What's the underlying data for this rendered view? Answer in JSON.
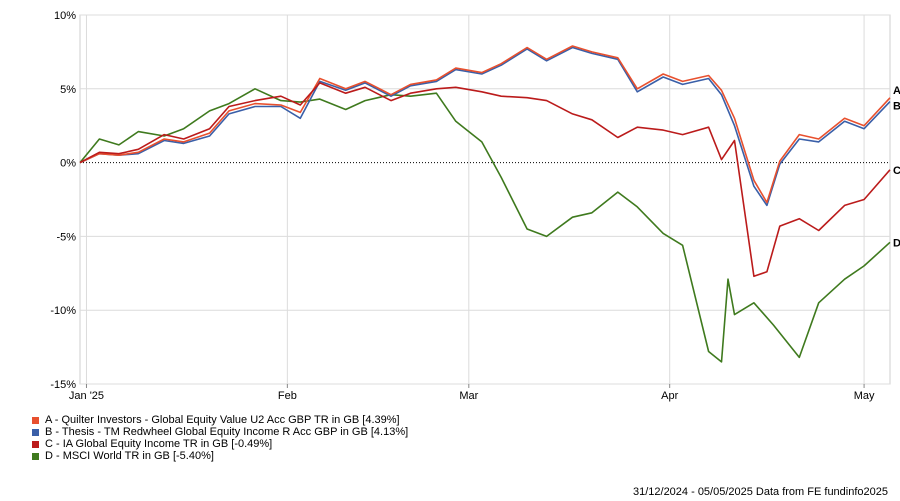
{
  "chart_data": {
    "type": "line",
    "x_axis": {
      "ticks": [
        "Jan '25",
        "Feb",
        "Mar",
        "Apr",
        "May"
      ],
      "tick_dates": [
        "2025-01-01",
        "2025-02-01",
        "2025-03-01",
        "2025-04-01",
        "2025-05-01"
      ],
      "range": [
        "2024-12-31",
        "2025-05-05"
      ]
    },
    "y_axis": {
      "ticks": [
        "10%",
        "5%",
        "0%",
        "-5%",
        "-10%",
        "-15%"
      ],
      "tick_values": [
        10,
        5,
        0,
        -5,
        -10,
        -15
      ],
      "range": [
        -15,
        10
      ],
      "unit": "%"
    },
    "grid": true,
    "zero_line": "dotted",
    "legend_position": "bottom-left",
    "footer": "31/12/2024 - 05/05/2025 Data from FE fundinfo2025",
    "series": [
      {
        "name": "A - Quilter Investors - Global Equity Value U2 Acc GBP TR in GB [4.39%]",
        "end_label": "A",
        "color": "#e8502e",
        "points": [
          [
            "2024-12-31",
            0.0
          ],
          [
            "2025-01-03",
            0.6
          ],
          [
            "2025-01-06",
            0.5
          ],
          [
            "2025-01-09",
            0.7
          ],
          [
            "2025-01-13",
            1.6
          ],
          [
            "2025-01-16",
            1.4
          ],
          [
            "2025-01-20",
            2.0
          ],
          [
            "2025-01-23",
            3.5
          ],
          [
            "2025-01-27",
            4.0
          ],
          [
            "2025-01-31",
            3.9
          ],
          [
            "2025-02-03",
            3.4
          ],
          [
            "2025-02-06",
            5.7
          ],
          [
            "2025-02-10",
            5.0
          ],
          [
            "2025-02-13",
            5.5
          ],
          [
            "2025-02-17",
            4.6
          ],
          [
            "2025-02-20",
            5.3
          ],
          [
            "2025-02-24",
            5.6
          ],
          [
            "2025-02-27",
            6.4
          ],
          [
            "2025-03-03",
            6.1
          ],
          [
            "2025-03-06",
            6.7
          ],
          [
            "2025-03-10",
            7.8
          ],
          [
            "2025-03-13",
            7.0
          ],
          [
            "2025-03-17",
            7.9
          ],
          [
            "2025-03-20",
            7.5
          ],
          [
            "2025-03-24",
            7.1
          ],
          [
            "2025-03-27",
            5.0
          ],
          [
            "2025-03-31",
            6.0
          ],
          [
            "2025-04-03",
            5.5
          ],
          [
            "2025-04-07",
            5.9
          ],
          [
            "2025-04-09",
            4.9
          ],
          [
            "2025-04-11",
            3.0
          ],
          [
            "2025-04-14",
            -1.2
          ],
          [
            "2025-04-16",
            -2.7
          ],
          [
            "2025-04-18",
            0.1
          ],
          [
            "2025-04-21",
            1.9
          ],
          [
            "2025-04-24",
            1.6
          ],
          [
            "2025-04-28",
            3.0
          ],
          [
            "2025-05-01",
            2.5
          ],
          [
            "2025-05-05",
            4.39
          ]
        ]
      },
      {
        "name": "B - Thesis - TM Redwheel Global Equity Income R Acc GBP in GB [4.13%]",
        "end_label": "B",
        "color": "#3a5fa8",
        "points": [
          [
            "2024-12-31",
            0.0
          ],
          [
            "2025-01-03",
            0.6
          ],
          [
            "2025-01-06",
            0.5
          ],
          [
            "2025-01-09",
            0.6
          ],
          [
            "2025-01-13",
            1.5
          ],
          [
            "2025-01-16",
            1.3
          ],
          [
            "2025-01-20",
            1.8
          ],
          [
            "2025-01-23",
            3.3
          ],
          [
            "2025-01-27",
            3.8
          ],
          [
            "2025-01-31",
            3.8
          ],
          [
            "2025-02-03",
            3.0
          ],
          [
            "2025-02-06",
            5.5
          ],
          [
            "2025-02-10",
            4.9
          ],
          [
            "2025-02-13",
            5.4
          ],
          [
            "2025-02-17",
            4.5
          ],
          [
            "2025-02-20",
            5.2
          ],
          [
            "2025-02-24",
            5.5
          ],
          [
            "2025-02-27",
            6.3
          ],
          [
            "2025-03-03",
            6.0
          ],
          [
            "2025-03-06",
            6.6
          ],
          [
            "2025-03-10",
            7.7
          ],
          [
            "2025-03-13",
            6.9
          ],
          [
            "2025-03-17",
            7.8
          ],
          [
            "2025-03-20",
            7.4
          ],
          [
            "2025-03-24",
            7.0
          ],
          [
            "2025-03-27",
            4.8
          ],
          [
            "2025-03-31",
            5.8
          ],
          [
            "2025-04-03",
            5.3
          ],
          [
            "2025-04-07",
            5.7
          ],
          [
            "2025-04-09",
            4.6
          ],
          [
            "2025-04-11",
            2.5
          ],
          [
            "2025-04-14",
            -1.6
          ],
          [
            "2025-04-16",
            -2.9
          ],
          [
            "2025-04-18",
            -0.1
          ],
          [
            "2025-04-21",
            1.6
          ],
          [
            "2025-04-24",
            1.4
          ],
          [
            "2025-04-28",
            2.8
          ],
          [
            "2025-05-01",
            2.3
          ],
          [
            "2025-05-05",
            4.13
          ]
        ]
      },
      {
        "name": "C - IA Global Equity Income TR in GB [-0.49%]",
        "end_label": "C",
        "color": "#bb1b1b",
        "points": [
          [
            "2024-12-31",
            0.0
          ],
          [
            "2025-01-03",
            0.7
          ],
          [
            "2025-01-06",
            0.6
          ],
          [
            "2025-01-09",
            0.9
          ],
          [
            "2025-01-13",
            1.9
          ],
          [
            "2025-01-16",
            1.6
          ],
          [
            "2025-01-20",
            2.3
          ],
          [
            "2025-01-23",
            3.8
          ],
          [
            "2025-01-27",
            4.2
          ],
          [
            "2025-01-31",
            4.5
          ],
          [
            "2025-02-03",
            3.9
          ],
          [
            "2025-02-06",
            5.4
          ],
          [
            "2025-02-10",
            4.7
          ],
          [
            "2025-02-13",
            5.1
          ],
          [
            "2025-02-17",
            4.2
          ],
          [
            "2025-02-20",
            4.7
          ],
          [
            "2025-02-24",
            5.0
          ],
          [
            "2025-02-27",
            5.1
          ],
          [
            "2025-03-03",
            4.8
          ],
          [
            "2025-03-06",
            4.5
          ],
          [
            "2025-03-10",
            4.4
          ],
          [
            "2025-03-13",
            4.2
          ],
          [
            "2025-03-17",
            3.3
          ],
          [
            "2025-03-20",
            2.9
          ],
          [
            "2025-03-24",
            1.7
          ],
          [
            "2025-03-27",
            2.4
          ],
          [
            "2025-03-31",
            2.2
          ],
          [
            "2025-04-03",
            1.9
          ],
          [
            "2025-04-07",
            2.4
          ],
          [
            "2025-04-09",
            0.2
          ],
          [
            "2025-04-11",
            1.5
          ],
          [
            "2025-04-14",
            -7.7
          ],
          [
            "2025-04-16",
            -7.4
          ],
          [
            "2025-04-18",
            -4.3
          ],
          [
            "2025-04-21",
            -3.8
          ],
          [
            "2025-04-24",
            -4.6
          ],
          [
            "2025-04-28",
            -2.9
          ],
          [
            "2025-05-01",
            -2.5
          ],
          [
            "2025-05-05",
            -0.49
          ]
        ]
      },
      {
        "name": "D - MSCI World TR in GB [-5.40%]",
        "end_label": "D",
        "color": "#3f7a1e",
        "points": [
          [
            "2024-12-31",
            0.0
          ],
          [
            "2025-01-03",
            1.6
          ],
          [
            "2025-01-06",
            1.2
          ],
          [
            "2025-01-09",
            2.1
          ],
          [
            "2025-01-13",
            1.8
          ],
          [
            "2025-01-16",
            2.3
          ],
          [
            "2025-01-20",
            3.5
          ],
          [
            "2025-01-23",
            4.0
          ],
          [
            "2025-01-27",
            5.0
          ],
          [
            "2025-01-31",
            4.2
          ],
          [
            "2025-02-03",
            4.1
          ],
          [
            "2025-02-06",
            4.3
          ],
          [
            "2025-02-10",
            3.6
          ],
          [
            "2025-02-13",
            4.2
          ],
          [
            "2025-02-17",
            4.6
          ],
          [
            "2025-02-20",
            4.5
          ],
          [
            "2025-02-24",
            4.7
          ],
          [
            "2025-02-27",
            2.8
          ],
          [
            "2025-03-03",
            1.4
          ],
          [
            "2025-03-06",
            -1.0
          ],
          [
            "2025-03-10",
            -4.5
          ],
          [
            "2025-03-13",
            -5.0
          ],
          [
            "2025-03-17",
            -3.7
          ],
          [
            "2025-03-20",
            -3.4
          ],
          [
            "2025-03-24",
            -2.0
          ],
          [
            "2025-03-27",
            -3.0
          ],
          [
            "2025-03-31",
            -4.8
          ],
          [
            "2025-04-03",
            -5.6
          ],
          [
            "2025-04-07",
            -12.8
          ],
          [
            "2025-04-09",
            -13.5
          ],
          [
            "2025-04-10",
            -7.9
          ],
          [
            "2025-04-11",
            -10.3
          ],
          [
            "2025-04-14",
            -9.5
          ],
          [
            "2025-04-17",
            -11.0
          ],
          [
            "2025-04-21",
            -13.2
          ],
          [
            "2025-04-24",
            -9.5
          ],
          [
            "2025-04-28",
            -7.9
          ],
          [
            "2025-05-01",
            -7.0
          ],
          [
            "2025-05-05",
            -5.4
          ]
        ]
      }
    ]
  }
}
